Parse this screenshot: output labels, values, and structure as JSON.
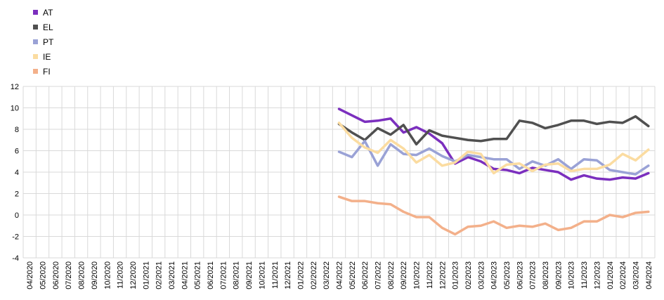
{
  "chart_data": {
    "type": "line",
    "title": "",
    "xlabel": "",
    "ylabel": "",
    "ylim": [
      -4,
      12
    ],
    "yticks": [
      12,
      10,
      8,
      6,
      4,
      2,
      0,
      -2,
      -4
    ],
    "grid": true,
    "legend_position": "top-left",
    "categories": [
      "04/2020",
      "05/2020",
      "06/2020",
      "07/2020",
      "08/2020",
      "09/2020",
      "10/2020",
      "11/2020",
      "12/2020",
      "01/2021",
      "02/2021",
      "03/2021",
      "04/2021",
      "05/2021",
      "06/2021",
      "07/2021",
      "08/2021",
      "09/2021",
      "10/2021",
      "11/2021",
      "12/2021",
      "01/2022",
      "02/2022",
      "03/2022",
      "04/2022",
      "05/2022",
      "06/2022",
      "07/2022",
      "08/2022",
      "09/2022",
      "10/2022",
      "11/2022",
      "12/2022",
      "01/2023",
      "02/2023",
      "03/2023",
      "04/2023",
      "05/2023",
      "06/2023",
      "07/2023",
      "08/2023",
      "09/2023",
      "10/2023",
      "11/2023",
      "12/2023",
      "01/2024",
      "02/2024",
      "03/2024",
      "04/2024"
    ],
    "series": [
      {
        "name": "AT",
        "color": "#7b2fbe",
        "values": [
          null,
          null,
          null,
          null,
          null,
          null,
          null,
          null,
          null,
          null,
          null,
          null,
          null,
          null,
          null,
          null,
          null,
          null,
          null,
          null,
          null,
          null,
          null,
          null,
          9.9,
          9.3,
          8.7,
          8.8,
          9.0,
          7.7,
          8.2,
          7.6,
          6.7,
          4.8,
          5.4,
          5.0,
          4.3,
          4.2,
          3.9,
          4.4,
          4.2,
          4.0,
          3.3,
          3.7,
          3.4,
          3.3,
          3.5,
          3.4,
          3.9
        ]
      },
      {
        "name": "EL",
        "color": "#505050",
        "values": [
          null,
          null,
          null,
          null,
          null,
          null,
          null,
          null,
          null,
          null,
          null,
          null,
          null,
          null,
          null,
          null,
          null,
          null,
          null,
          null,
          null,
          null,
          null,
          null,
          8.5,
          7.7,
          7.0,
          8.1,
          7.5,
          8.4,
          6.6,
          7.9,
          7.4,
          7.2,
          7.0,
          6.9,
          7.1,
          7.1,
          8.8,
          8.6,
          8.1,
          8.4,
          8.8,
          8.8,
          8.5,
          8.7,
          8.6,
          9.2,
          8.3
        ]
      },
      {
        "name": "PT",
        "color": "#9aa2d6",
        "values": [
          null,
          null,
          null,
          null,
          null,
          null,
          null,
          null,
          null,
          null,
          null,
          null,
          null,
          null,
          null,
          null,
          null,
          null,
          null,
          null,
          null,
          null,
          null,
          null,
          5.9,
          5.4,
          6.9,
          4.6,
          6.6,
          5.7,
          5.6,
          6.2,
          5.5,
          5.0,
          5.6,
          5.4,
          5.2,
          5.2,
          4.3,
          5.0,
          4.6,
          5.2,
          4.3,
          5.2,
          5.1,
          4.2,
          4.0,
          3.8,
          4.6
        ]
      },
      {
        "name": "IE",
        "color": "#fbdca1",
        "values": [
          null,
          null,
          null,
          null,
          null,
          null,
          null,
          null,
          null,
          null,
          null,
          null,
          null,
          null,
          null,
          null,
          null,
          null,
          null,
          null,
          null,
          null,
          null,
          null,
          8.6,
          7.2,
          6.3,
          5.8,
          7.0,
          6.2,
          4.9,
          5.6,
          4.6,
          4.9,
          5.9,
          5.7,
          3.9,
          4.7,
          4.8,
          4.1,
          4.7,
          4.8,
          4.1,
          4.3,
          4.3,
          4.7,
          5.7,
          5.1,
          6.1
        ]
      },
      {
        "name": "FI",
        "color": "#f3b08a",
        "values": [
          null,
          null,
          null,
          null,
          null,
          null,
          null,
          null,
          null,
          null,
          null,
          null,
          null,
          null,
          null,
          null,
          null,
          null,
          null,
          null,
          null,
          null,
          null,
          null,
          1.7,
          1.3,
          1.3,
          1.1,
          1.0,
          0.3,
          -0.2,
          -0.2,
          -1.2,
          -1.8,
          -1.1,
          -1.0,
          -0.6,
          -1.2,
          -1.0,
          -1.1,
          -0.8,
          -1.4,
          -1.2,
          -0.6,
          -0.6,
          0.0,
          -0.2,
          0.2,
          0.3
        ]
      }
    ]
  }
}
